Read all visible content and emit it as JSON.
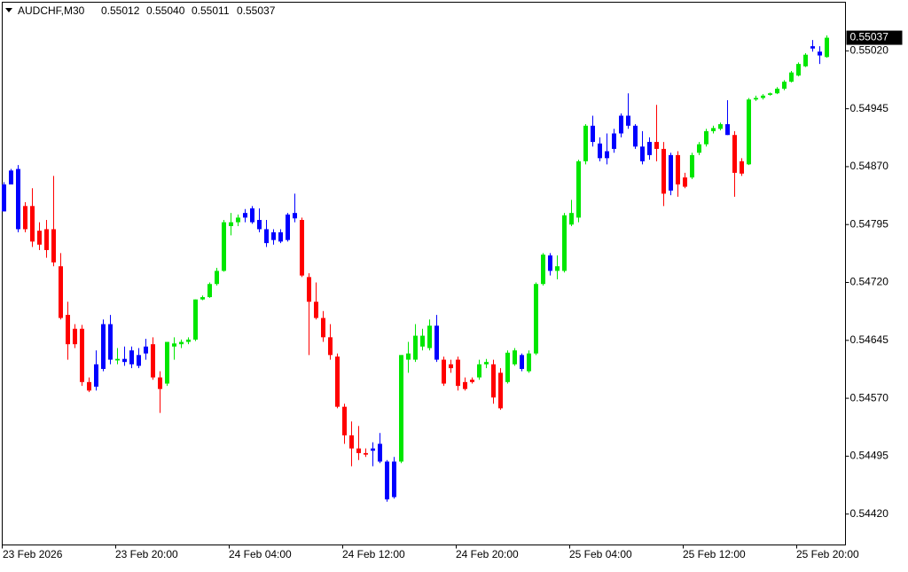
{
  "chart_data": {
    "type": "candlestick",
    "symbol": "AUDCHF,M30",
    "ohlc_labels": [
      "0.55012",
      "0.55040",
      "0.55011",
      "0.55037"
    ],
    "categories": [
      "23 Feb 2026",
      null,
      null,
      null,
      null,
      null,
      null,
      null,
      null,
      null,
      null,
      null,
      null,
      null,
      null,
      null,
      "23 Feb 20:00",
      null,
      null,
      null,
      null,
      null,
      null,
      null,
      null,
      null,
      null,
      null,
      null,
      null,
      null,
      null,
      "24 Feb 04:00",
      null,
      null,
      null,
      null,
      null,
      null,
      null,
      null,
      null,
      null,
      null,
      null,
      null,
      null,
      null,
      "24 Feb 12:00",
      null,
      null,
      null,
      null,
      null,
      null,
      null,
      null,
      null,
      null,
      null,
      null,
      null,
      null,
      null,
      "24 Feb 20:00",
      null,
      null,
      null,
      null,
      null,
      null,
      null,
      null,
      null,
      null,
      null,
      null,
      null,
      null,
      null,
      "25 Feb 04:00",
      null,
      null,
      null,
      null,
      null,
      null,
      null,
      null,
      null,
      null,
      null,
      null,
      null,
      null,
      null,
      "25 Feb 12:00",
      null,
      null,
      null,
      null,
      null,
      null,
      null,
      null,
      null,
      null,
      null,
      null,
      null,
      null,
      null,
      "25 Feb 20:00",
      null,
      null,
      null,
      null
    ],
    "open": [
      0.54847,
      0.54865,
      0.54867,
      0.54819,
      0.54819,
      0.54787,
      0.54789,
      0.54789,
      0.54741,
      0.54678,
      0.5466,
      0.5466,
      0.54591,
      0.54614,
      0.54666,
      0.54666,
      0.54619,
      0.54621,
      0.54632,
      0.54626,
      0.54637,
      0.5464,
      0.54597,
      0.54589,
      0.54637,
      0.5464,
      0.54643,
      0.54646,
      0.54698,
      0.54701,
      0.54718,
      0.54735,
      0.54793,
      0.54798,
      0.5481,
      0.54816,
      0.54801,
      0.54789,
      0.54785,
      0.54785,
      0.54775,
      0.5481,
      0.54801,
      0.54727,
      0.54695,
      0.54674,
      0.54649,
      0.54624,
      0.54559,
      0.54522,
      0.54505,
      0.54499,
      0.54505,
      0.54511,
      0.54488,
      0.54488,
      0.54488,
      0.5462,
      0.5462,
      0.54637,
      0.54635,
      0.54664,
      0.5462,
      0.54614,
      0.5462,
      0.54591,
      0.54594,
      0.54597,
      0.54614,
      0.54614,
      0.54603,
      0.54591,
      0.54614,
      0.54626,
      0.54605,
      0.54628,
      0.54718,
      0.54755,
      0.54735,
      0.54735,
      0.54795,
      0.54804,
      0.54877,
      0.54923,
      0.549,
      0.5489,
      0.54913,
      0.54936,
      0.54936,
      0.54923,
      0.54896,
      0.54902,
      0.54902,
      0.54893,
      0.54885,
      0.54885,
      0.54856,
      0.54856,
      0.54888,
      0.54899,
      0.54916,
      0.54919,
      0.54925,
      0.54911,
      0.54877,
      0.54873,
      0.54957,
      0.54959,
      0.54963,
      0.54965,
      0.54971,
      0.5498,
      0.54988,
      0.55,
      0.55023,
      0.55019,
      0.55012
    ],
    "high": [
      0.5485,
      0.54867,
      0.54872,
      0.54824,
      0.54842,
      0.54798,
      0.54801,
      0.54858,
      0.54758,
      0.54695,
      0.54666,
      0.54665,
      0.54597,
      0.54632,
      0.54672,
      0.54678,
      0.54635,
      0.54637,
      0.54637,
      0.54635,
      0.54647,
      0.54649,
      0.54605,
      0.54643,
      0.54649,
      0.54646,
      0.54649,
      0.54698,
      0.54703,
      0.5472,
      0.54739,
      0.54801,
      0.5481,
      0.54808,
      0.54815,
      0.54819,
      0.54816,
      0.54801,
      0.54789,
      0.54789,
      0.5481,
      0.54835,
      0.54804,
      0.54732,
      0.5472,
      0.54683,
      0.54666,
      0.54628,
      0.54563,
      0.5454,
      0.54534,
      0.54505,
      0.54513,
      0.54525,
      0.5449,
      0.54494,
      0.54626,
      0.54643,
      0.54666,
      0.5466,
      0.54672,
      0.54678,
      0.54624,
      0.5462,
      0.54624,
      0.54597,
      0.54597,
      0.5462,
      0.54621,
      0.5462,
      0.54609,
      0.54632,
      0.54635,
      0.54628,
      0.54632,
      0.5472,
      0.54758,
      0.54758,
      0.54755,
      0.5481,
      0.54827,
      0.54879,
      0.54925,
      0.54936,
      0.54908,
      0.54913,
      0.54919,
      0.54939,
      0.54965,
      0.54925,
      0.54916,
      0.54908,
      0.5495,
      0.54902,
      0.54888,
      0.5489,
      0.54862,
      0.54888,
      0.54902,
      0.54919,
      0.54923,
      0.54927,
      0.54956,
      0.54916,
      0.54881,
      0.54959,
      0.54962,
      0.54964,
      0.54966,
      0.54973,
      0.54982,
      0.54994,
      0.55005,
      0.55017,
      0.55034,
      0.55026,
      0.5504
    ],
    "low": [
      0.54812,
      0.54847,
      0.54785,
      0.54785,
      0.54766,
      0.54762,
      0.54752,
      0.54741,
      0.54672,
      0.5462,
      0.54635,
      0.54586,
      0.54578,
      0.5458,
      0.54605,
      0.54614,
      0.54614,
      0.54612,
      0.54609,
      0.54609,
      0.5462,
      0.54594,
      0.54551,
      0.54586,
      0.5462,
      0.54635,
      0.5464,
      0.54644,
      0.54697,
      0.547,
      0.54716,
      0.54734,
      0.54781,
      0.54793,
      0.54798,
      0.54796,
      0.54785,
      0.54766,
      0.54769,
      0.54771,
      0.54773,
      0.54798,
      0.54727,
      0.54626,
      0.54672,
      0.54643,
      0.5462,
      0.54557,
      0.54511,
      0.54482,
      0.5449,
      0.54494,
      0.54482,
      0.54486,
      0.54436,
      0.5444,
      0.54486,
      0.54603,
      0.54617,
      0.54632,
      0.54632,
      0.54617,
      0.54586,
      0.54603,
      0.5458,
      0.5458,
      0.54589,
      0.54594,
      0.54609,
      0.54563,
      0.54555,
      0.54589,
      0.54612,
      0.54605,
      0.54603,
      0.54626,
      0.54716,
      0.54729,
      0.54724,
      0.54733,
      0.54793,
      0.54798,
      0.54873,
      0.54896,
      0.54877,
      0.54873,
      0.54888,
      0.54908,
      0.54919,
      0.54893,
      0.54873,
      0.54879,
      0.54877,
      0.54819,
      0.54833,
      0.54831,
      0.54842,
      0.54854,
      0.54885,
      0.54896,
      0.54913,
      0.54917,
      0.54911,
      0.54831,
      0.54858,
      0.54872,
      0.54955,
      0.54957,
      0.54962,
      0.54964,
      0.54969,
      0.54979,
      0.54987,
      0.54999,
      0.55019,
      0.55003,
      0.55011
    ],
    "close": [
      0.54812,
      0.54847,
      0.54789,
      0.54789,
      0.54773,
      0.54769,
      0.54762,
      0.54746,
      0.54674,
      0.5464,
      0.5464,
      0.54591,
      0.5458,
      0.54585,
      0.54608,
      0.5462,
      0.54621,
      0.54617,
      0.54614,
      0.54612,
      0.54628,
      0.54597,
      0.54582,
      0.54643,
      0.54641,
      0.54643,
      0.54646,
      0.54698,
      0.54701,
      0.54718,
      0.54735,
      0.54798,
      0.54798,
      0.54804,
      0.54804,
      0.54798,
      0.54789,
      0.54771,
      0.54775,
      0.54773,
      0.54808,
      0.54803,
      0.54729,
      0.54695,
      0.54674,
      0.54649,
      0.54626,
      0.54559,
      0.54522,
      0.54505,
      0.54499,
      0.54497,
      0.54502,
      0.54488,
      0.54439,
      0.54442,
      0.54626,
      0.54628,
      0.54651,
      0.54651,
      0.54664,
      0.5462,
      0.54589,
      0.54609,
      0.54586,
      0.54582,
      0.54591,
      0.54614,
      0.54617,
      0.54571,
      0.54557,
      0.54629,
      0.54632,
      0.54608,
      0.54628,
      0.54718,
      0.54756,
      0.54735,
      0.54741,
      0.54807,
      0.5481,
      0.54877,
      0.54923,
      0.54902,
      0.54881,
      0.54881,
      0.54893,
      0.54913,
      0.54923,
      0.54896,
      0.54877,
      0.54885,
      0.54893,
      0.54835,
      0.54839,
      0.54847,
      0.54844,
      0.54885,
      0.54899,
      0.54916,
      0.5492,
      0.54925,
      0.54911,
      0.54862,
      0.54861,
      0.54957,
      0.54959,
      0.54962,
      0.54965,
      0.54971,
      0.5498,
      0.54992,
      0.55003,
      0.55015,
      0.55026,
      0.55014,
      0.55037
    ],
    "colors": [
      "#0000ff",
      "#0000ff",
      "#0000ff",
      "#ff0000",
      "#ff0000",
      "#ff0000",
      "#ff0000",
      "#ff0000",
      "#ff0000",
      "#ff0000",
      "#ff0000",
      "#ff0000",
      "#ff0000",
      "#0000ff",
      "#0000ff",
      "#0000ff",
      "#00e600",
      "#0000ff",
      "#0000ff",
      "#0000ff",
      "#0000ff",
      "#ff0000",
      "#ff0000",
      "#00e600",
      "#00e600",
      "#00e600",
      "#00e600",
      "#00e600",
      "#00e600",
      "#00e600",
      "#00e600",
      "#00e600",
      "#00e600",
      "#00e600",
      "#0000ff",
      "#0000ff",
      "#0000ff",
      "#0000ff",
      "#0000ff",
      "#0000ff",
      "#0000ff",
      "#0000ff",
      "#ff0000",
      "#ff0000",
      "#ff0000",
      "#ff0000",
      "#ff0000",
      "#ff0000",
      "#ff0000",
      "#ff0000",
      "#ff0000",
      "#ff0000",
      "#0000ff",
      "#0000ff",
      "#0000ff",
      "#0000ff",
      "#00e600",
      "#00e600",
      "#00e600",
      "#00e600",
      "#00e600",
      "#0000ff",
      "#ff0000",
      "#ff0000",
      "#ff0000",
      "#ff0000",
      "#ff0000",
      "#00e600",
      "#00e600",
      "#ff0000",
      "#ff0000",
      "#00e600",
      "#00e600",
      "#0000ff",
      "#00e600",
      "#00e600",
      "#00e600",
      "#0000ff",
      "#00e600",
      "#00e600",
      "#00e600",
      "#00e600",
      "#00e600",
      "#0000ff",
      "#0000ff",
      "#0000ff",
      "#0000ff",
      "#0000ff",
      "#0000ff",
      "#0000ff",
      "#0000ff",
      "#0000ff",
      "#ff0000",
      "#ff0000",
      "#0000ff",
      "#ff0000",
      "#ff0000",
      "#00e600",
      "#00e600",
      "#00e600",
      "#00e600",
      "#00e600",
      "#0000ff",
      "#ff0000",
      "#ff0000",
      "#00e600",
      "#00e600",
      "#00e600",
      "#00e600",
      "#00e600",
      "#00e600",
      "#00e600",
      "#00e600",
      "#00e600",
      "#0000ff",
      "#0000ff",
      "#00e600"
    ],
    "ylim": [
      0.5438,
      0.55083
    ],
    "yticks": [
      {
        "value": 0.5502,
        "label": "0.55020"
      },
      {
        "value": 0.54945,
        "label": "0.54945"
      },
      {
        "value": 0.5487,
        "label": "0.54870"
      },
      {
        "value": 0.54795,
        "label": "0.54795"
      },
      {
        "value": 0.5472,
        "label": "0.54720"
      },
      {
        "value": 0.54645,
        "label": "0.54645"
      },
      {
        "value": 0.5457,
        "label": "0.54570"
      },
      {
        "value": 0.54495,
        "label": "0.54495"
      },
      {
        "value": 0.5442,
        "label": "0.54420"
      }
    ],
    "grid": false
  }
}
